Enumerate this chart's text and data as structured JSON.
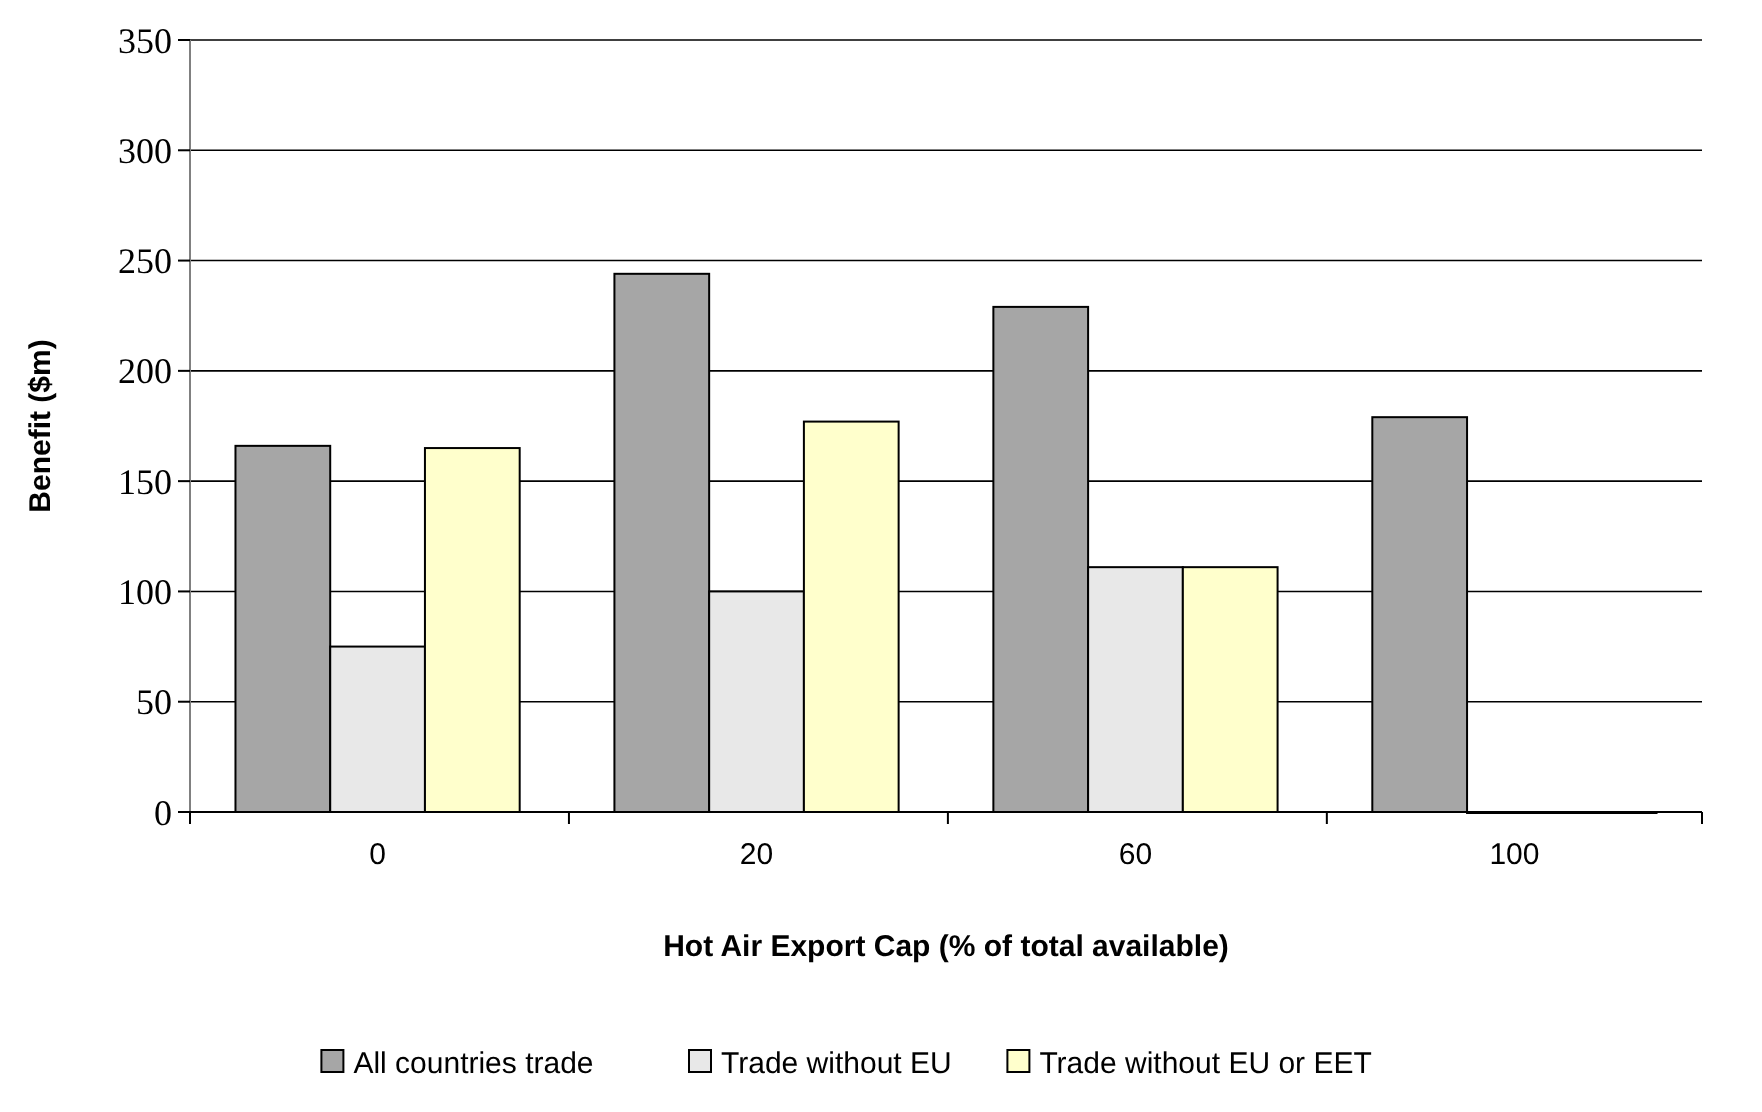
{
  "chart_data": {
    "type": "bar",
    "xlabel": "Hot Air Export Cap (% of total available)",
    "ylabel": "Benefit ($m)",
    "categories": [
      "0",
      "20",
      "60",
      "100"
    ],
    "series": [
      {
        "name": "All countries trade",
        "color": "#a6a6a6",
        "values": [
          166,
          244,
          229,
          179
        ]
      },
      {
        "name": "Trade without EU",
        "color": "#e8e8e8",
        "values": [
          75,
          100,
          111,
          0
        ]
      },
      {
        "name": "Trade without EU or EET",
        "color": "#ffffcc",
        "values": [
          165,
          177,
          111,
          0
        ]
      }
    ],
    "ylim": [
      0,
      350
    ],
    "yticks": [
      0,
      50,
      100,
      150,
      200,
      250,
      300,
      350
    ],
    "grid": "y",
    "legend": "bottom"
  }
}
